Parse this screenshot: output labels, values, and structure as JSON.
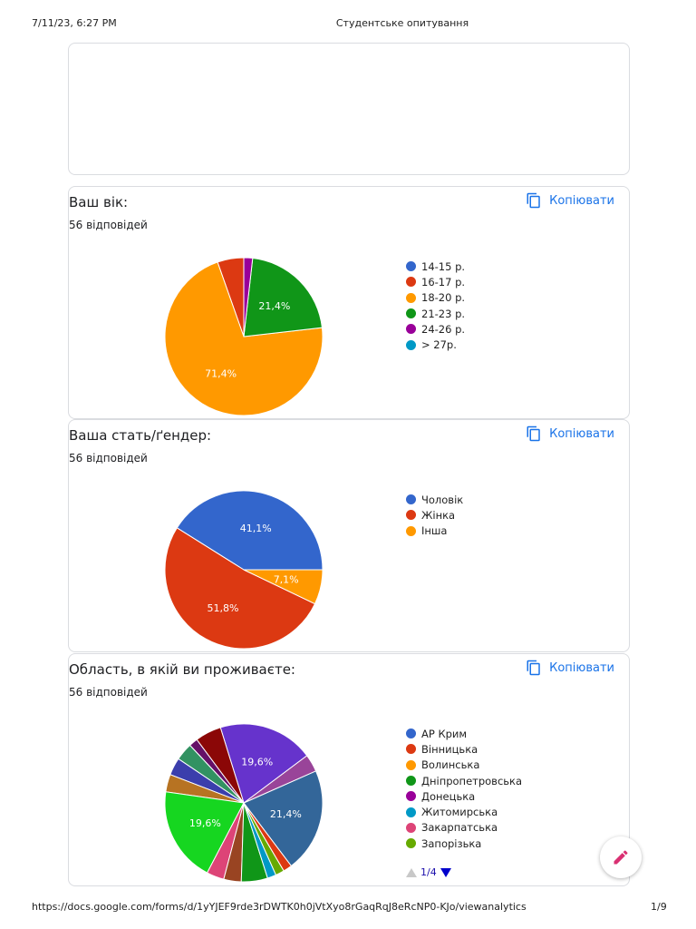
{
  "print_header": {
    "datetime": "7/11/23, 6:27 PM",
    "title": "Студентське опитування"
  },
  "print_footer": {
    "url": "https://docs.google.com/forms/d/1yYJEF9rde3rDWTK0h0jVtXyo8rGaqRqJ8eRcNP0-KJo/viewanalytics",
    "page": "1/9"
  },
  "copy_label": "Копіювати",
  "colors": {
    "accent": "#1a73e8",
    "blue": "#3366cc",
    "red": "#dc3912",
    "orange": "#ff9900",
    "green": "#109618",
    "purple": "#990099",
    "cyan": "#0099c6",
    "pink": "#dd4477",
    "lime": "#66aa00"
  },
  "questions": [
    {
      "title": "Ваш вік:",
      "count": "56 відповідей",
      "legend": [
        {
          "label": "14-15 р.",
          "color": "#3366cc"
        },
        {
          "label": "16-17 р.",
          "color": "#dc3912"
        },
        {
          "label": "18-20 р.",
          "color": "#ff9900"
        },
        {
          "label": "21-23 р.",
          "color": "#109618"
        },
        {
          "label": "24-26 р.",
          "color": "#990099"
        },
        {
          "label": "> 27р.",
          "color": "#0099c6"
        }
      ]
    },
    {
      "title": "Ваша стать/ґендер:",
      "count": "56 відповідей",
      "legend": [
        {
          "label": "Чоловік",
          "color": "#3366cc"
        },
        {
          "label": "Жінка",
          "color": "#dc3912"
        },
        {
          "label": "Інша",
          "color": "#ff9900"
        }
      ]
    },
    {
      "title": "Область, в якій ви проживаєте:",
      "count": "56 відповідей",
      "legend": [
        {
          "label": "АР Крим",
          "color": "#3366cc"
        },
        {
          "label": "Вінницька",
          "color": "#dc3912"
        },
        {
          "label": "Волинська",
          "color": "#ff9900"
        },
        {
          "label": "Дніпропетровська",
          "color": "#109618"
        },
        {
          "label": "Донецька",
          "color": "#990099"
        },
        {
          "label": "Житомирська",
          "color": "#0099c6"
        },
        {
          "label": "Закарпатська",
          "color": "#dd4477"
        },
        {
          "label": "Запорізька",
          "color": "#66aa00"
        }
      ],
      "pager": "1/4"
    }
  ],
  "chart_data": [
    {
      "type": "pie",
      "slices": [
        {
          "label": "14-15 р.",
          "value": 0,
          "color": "#3366cc"
        },
        {
          "label": "16-17 р.",
          "value": 5.4,
          "color": "#dc3912"
        },
        {
          "label": "18-20 р.",
          "value": 71.4,
          "label_text": "71,4%",
          "color": "#ff9900"
        },
        {
          "label": "21-23 р.",
          "value": 21.4,
          "label_text": "21,4%",
          "color": "#109618"
        },
        {
          "label": "24-26 р.",
          "value": 1.8,
          "color": "#990099"
        },
        {
          "label": "> 27р.",
          "value": 0,
          "color": "#0099c6"
        }
      ]
    },
    {
      "type": "pie",
      "slices": [
        {
          "label": "Чоловік",
          "value": 41.1,
          "label_text": "41,1%",
          "color": "#3366cc"
        },
        {
          "label": "Жінка",
          "value": 51.8,
          "label_text": "51,8%",
          "color": "#dc3912"
        },
        {
          "label": "Інша",
          "value": 7.1,
          "label_text": "7,1%",
          "color": "#ff9900"
        }
      ]
    },
    {
      "type": "pie",
      "slices": [
        {
          "label": "",
          "value": 21.4,
          "label_text": "21,4%",
          "color": "#336699"
        },
        {
          "label": "",
          "value": 3.6,
          "color": "#994499"
        },
        {
          "label": "",
          "value": 19.6,
          "label_text": "19,6%",
          "color": "#6633cc"
        },
        {
          "label": "",
          "value": 5.4,
          "color": "#8b0707"
        },
        {
          "label": "",
          "value": 1.8,
          "color": "#651067"
        },
        {
          "label": "",
          "value": 3.6,
          "color": "#329262"
        },
        {
          "label": "",
          "value": 3.6,
          "color": "#3b3eac"
        },
        {
          "label": "",
          "value": 3.6,
          "color": "#b77322"
        },
        {
          "label": "",
          "value": 19.6,
          "label_text": "19,6%",
          "color": "#16d620"
        },
        {
          "label": "Закарпатська",
          "value": 3.6,
          "color": "#dd4477"
        },
        {
          "label": "",
          "value": 3.6,
          "color": "#994422"
        },
        {
          "label": "Дніпропетровська",
          "value": 5.4,
          "color": "#109618"
        },
        {
          "label": "Житомирська",
          "value": 1.8,
          "color": "#0099c6"
        },
        {
          "label": "Запорізька",
          "value": 1.8,
          "color": "#66aa00"
        },
        {
          "label": "Вінницька",
          "value": 1.8,
          "color": "#dc3912"
        }
      ]
    }
  ]
}
